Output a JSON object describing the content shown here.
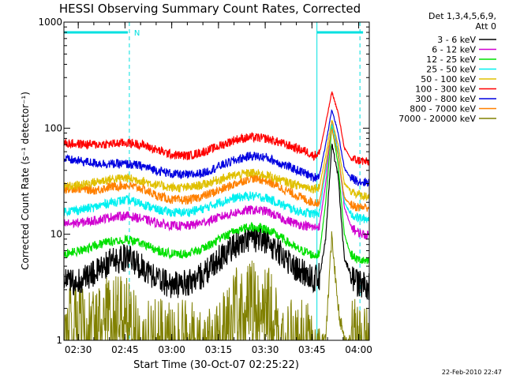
{
  "chart_data": {
    "type": "line",
    "title": "HESSI Observing Summary Count Rates, Corrected",
    "xlabel": "Start Time (30-Oct-07 02:25:22)",
    "ylabel": "Corrected Count Rate (s⁻¹ detector⁻¹)",
    "x_unit": "minutes after 02:25:22",
    "xlim": [
      0,
      98
    ],
    "xticks": [
      {
        "label": "02:30",
        "value": 4.6
      },
      {
        "label": "02:45",
        "value": 19.6
      },
      {
        "label": "03:00",
        "value": 34.6
      },
      {
        "label": "03:15",
        "value": 49.6
      },
      {
        "label": "03:30",
        "value": 64.6
      },
      {
        "label": "03:45",
        "value": 79.6
      },
      {
        "label": "04:00",
        "value": 94.6
      }
    ],
    "yscale": "log",
    "ylim": [
      1,
      1000
    ],
    "yticks": [
      {
        "label": "1",
        "value": 1
      },
      {
        "label": "10",
        "value": 10
      },
      {
        "label": "100",
        "value": 100
      },
      {
        "label": "1000",
        "value": 1000
      }
    ],
    "legend_header": [
      "Det 1,3,4,5,6,9,",
      "Att 0"
    ],
    "legend_position": "right",
    "x": [
      0,
      5,
      10,
      15,
      20,
      25,
      30,
      35,
      40,
      45,
      50,
      55,
      60,
      65,
      70,
      75,
      78,
      80,
      82,
      84,
      86,
      88,
      90,
      92,
      94,
      96,
      97
    ],
    "series": [
      {
        "name": "3 - 6 keV",
        "color": "#000000",
        "values": [
          3.5,
          3.6,
          4.3,
          5.5,
          6.0,
          5.0,
          3.8,
          3.3,
          3.5,
          4.2,
          6.0,
          8.0,
          9.2,
          8.6,
          6.5,
          4.6,
          4.2,
          3.8,
          4.0,
          9.0,
          70,
          35,
          6,
          4.2,
          3.5,
          3.3,
          3.2
        ]
      },
      {
        "name": "6 - 12 keV",
        "color": "#d000d0",
        "values": [
          12.5,
          12.8,
          13.5,
          14.5,
          15.0,
          14.0,
          12.8,
          12.0,
          12.0,
          13.0,
          14.5,
          16.0,
          17.0,
          16.5,
          14.0,
          12.5,
          12.0,
          11.5,
          12,
          30,
          120,
          60,
          18,
          12,
          10.5,
          10,
          9.8
        ]
      },
      {
        "name": "12 - 25 keV",
        "color": "#00e000",
        "values": [
          6.5,
          7.0,
          7.8,
          8.6,
          9.0,
          8.2,
          7.0,
          6.5,
          6.6,
          7.4,
          9.0,
          10.8,
          11.8,
          11.2,
          9.2,
          7.2,
          6.8,
          6.3,
          6.5,
          20,
          105,
          45,
          10,
          6.5,
          5.8,
          5.6,
          5.5
        ]
      },
      {
        "name": "25 - 50 keV",
        "color": "#00f0f0",
        "values": [
          16.5,
          17.0,
          18.0,
          20.0,
          21.0,
          19.5,
          17.0,
          16.0,
          16.2,
          17.5,
          20.0,
          22.0,
          23.0,
          22.0,
          19.0,
          16.5,
          16.0,
          15.5,
          16,
          40,
          110,
          60,
          20,
          15.5,
          14.5,
          14,
          14
        ]
      },
      {
        "name": "50 - 100 keV",
        "color": "#e0c000",
        "values": [
          28,
          29,
          31,
          33,
          34,
          32,
          29,
          27.5,
          27.5,
          29.5,
          33,
          36,
          38,
          36,
          32,
          29,
          28,
          27,
          28,
          55,
          120,
          70,
          30,
          26,
          24,
          23,
          23
        ]
      },
      {
        "name": "100 - 300 keV",
        "color": "#ff0000",
        "values": [
          72,
          71,
          70,
          71,
          73,
          70,
          62,
          56,
          55,
          60,
          68,
          78,
          82,
          80,
          72,
          64,
          60,
          55,
          58,
          110,
          220,
          140,
          65,
          52,
          50,
          49,
          48
        ]
      },
      {
        "name": "300 - 800 keV",
        "color": "#0000e0",
        "values": [
          51,
          49,
          47,
          46,
          46,
          44,
          40,
          37,
          36,
          38,
          44,
          50,
          55,
          53,
          46,
          40,
          37,
          34,
          36,
          70,
          150,
          90,
          42,
          34,
          32,
          31,
          31
        ]
      },
      {
        "name": "800 - 7000 keV",
        "color": "#ff8000",
        "values": [
          27,
          27,
          26,
          28,
          29,
          27,
          23,
          21,
          21,
          23,
          26,
          30,
          34,
          32,
          27,
          23,
          21,
          20,
          20,
          45,
          100,
          55,
          22,
          19,
          18,
          18,
          18
        ]
      },
      {
        "name": "7000 - 20000 keV",
        "color": "#808000",
        "values": [
          1.5,
          1.3,
          1.2,
          1.8,
          1.8,
          1.0,
          1.0,
          1.0,
          1.0,
          1.0,
          1.0,
          2.0,
          2.6,
          2.4,
          1.0,
          1.0,
          1.0,
          1.0,
          1.0,
          1.0,
          10,
          2,
          1,
          1,
          1,
          1,
          1
        ]
      }
    ],
    "annotations": {
      "marker_label": "N",
      "dashed_lines_at": [
        21.0,
        95.0
      ],
      "solid_line_at": 81.2,
      "top_bars": [
        [
          0,
          20.5
        ],
        [
          81.2,
          96
        ]
      ]
    }
  },
  "timestamp": "22-Feb-2010 22:47",
  "colors": {
    "annotation": "#00e0e0",
    "axes": "#000000",
    "background": "#ffffff"
  }
}
